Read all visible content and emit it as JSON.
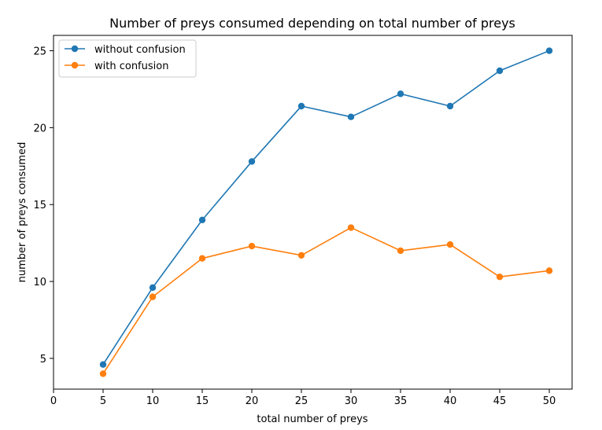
{
  "chart_data": {
    "type": "line",
    "title": "Number of preys consumed depending on total number of preys",
    "xlabel": "total number of preys",
    "ylabel": "number of preys consumed",
    "xlim": [
      0,
      52.3
    ],
    "ylim": [
      3.0,
      26.0
    ],
    "xticks": [
      0,
      5,
      10,
      15,
      20,
      25,
      30,
      35,
      40,
      45,
      50
    ],
    "yticks": [
      5,
      10,
      15,
      20,
      25
    ],
    "legend_position": "upper-left",
    "x": [
      5,
      10,
      15,
      20,
      25,
      30,
      35,
      40,
      45,
      50
    ],
    "series": [
      {
        "name": "without confusion",
        "color": "#1f77b4",
        "values": [
          4.6,
          9.6,
          14.0,
          17.8,
          21.4,
          20.7,
          22.2,
          21.4,
          23.7,
          25.0
        ]
      },
      {
        "name": "with confusion",
        "color": "#ff7f0e",
        "values": [
          4.0,
          9.0,
          11.5,
          12.3,
          11.7,
          13.5,
          12.0,
          12.4,
          10.3,
          10.7
        ]
      }
    ]
  }
}
